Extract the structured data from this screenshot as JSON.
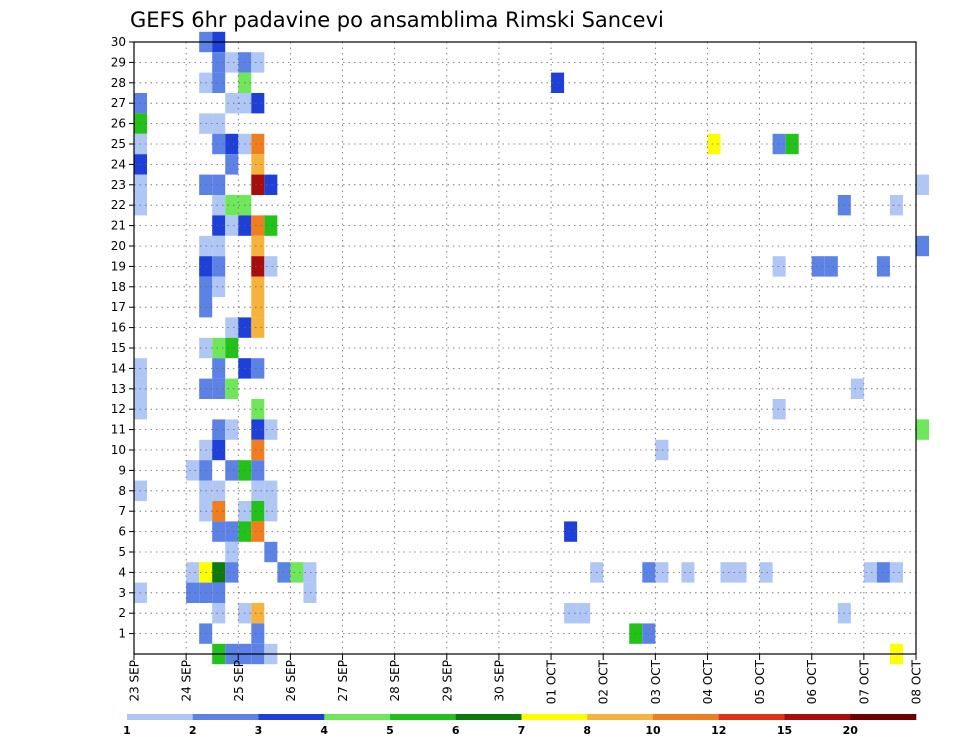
{
  "chart_data": {
    "type": "heatmap",
    "title": "GEFS 6hr padavine po ansamblima Rimski Sancevi",
    "x_tick_labels": [
      "23 SEP",
      "24 SEP",
      "25 SEP",
      "26 SEP",
      "27 SEP",
      "28 SEP",
      "29 SEP",
      "30 SEP",
      "01 OCT",
      "02 OCT",
      "03 OCT",
      "04 OCT",
      "05 OCT",
      "06 OCT",
      "07 OCT",
      "08 OCT"
    ],
    "y_tick_labels": [
      "1",
      "2",
      "3",
      "4",
      "5",
      "6",
      "7",
      "8",
      "9",
      "10",
      "11",
      "12",
      "13",
      "14",
      "15",
      "16",
      "17",
      "18",
      "19",
      "20",
      "21",
      "22",
      "23",
      "24",
      "25",
      "26",
      "27",
      "28",
      "29",
      "30"
    ],
    "y_range": [
      0,
      30
    ],
    "x_range_days": [
      0,
      15
    ],
    "step_hours": 6,
    "grid": true,
    "colorbar": {
      "labels": [
        "1",
        "2",
        "3",
        "4",
        "5",
        "6",
        "7",
        "8",
        "10",
        "12",
        "15",
        "20"
      ],
      "colors": [
        "#b0c6f5",
        "#5c82e6",
        "#1e3fd8",
        "#6ee85a",
        "#22c21a",
        "#0d7a0d",
        "#ffff00",
        "#f5b23c",
        "#f07d1e",
        "#e03214",
        "#a80c0c",
        "#6e0000"
      ]
    },
    "cells": [
      [
        "2023-09-24T06",
        "30",
        "#5c82e6"
      ],
      [
        "2023-09-24T12",
        "30",
        "#1e3fd8"
      ],
      [
        "2023-09-24T12",
        "29",
        "#5c82e6"
      ],
      [
        "2023-09-24T18",
        "29",
        "#b0c6f5"
      ],
      [
        "2023-09-25T00",
        "29",
        "#5c82e6"
      ],
      [
        "2023-09-25T06",
        "29",
        "#b0c6f5"
      ],
      [
        "2023-09-24T06",
        "28",
        "#b0c6f5"
      ],
      [
        "2023-09-24T12",
        "28",
        "#5c82e6"
      ],
      [
        "2023-09-25T00",
        "28",
        "#6ee85a"
      ],
      [
        "2023-10-01T00",
        "28",
        "#1e3fd8"
      ],
      [
        "2023-09-23T00",
        "27",
        "#5c82e6"
      ],
      [
        "2023-09-24T18",
        "27",
        "#b0c6f5"
      ],
      [
        "2023-09-25T00",
        "27",
        "#b0c6f5"
      ],
      [
        "2023-09-25T06",
        "27",
        "#1e3fd8"
      ],
      [
        "2023-09-23T00",
        "26",
        "#22c21a"
      ],
      [
        "2023-09-24T06",
        "26",
        "#b0c6f5"
      ],
      [
        "2023-09-24T12",
        "26",
        "#b0c6f5"
      ],
      [
        "2023-09-23T00",
        "25",
        "#b0c6f5"
      ],
      [
        "2023-09-24T12",
        "25",
        "#5c82e6"
      ],
      [
        "2023-09-24T18",
        "25",
        "#1e3fd8"
      ],
      [
        "2023-09-25T00",
        "25",
        "#b0c6f5"
      ],
      [
        "2023-09-25T06",
        "25",
        "#f07d1e"
      ],
      [
        "2023-10-04T00",
        "25",
        "#ffff00"
      ],
      [
        "2023-10-05T06",
        "25",
        "#5c82e6"
      ],
      [
        "2023-10-05T12",
        "25",
        "#22c21a"
      ],
      [
        "2023-09-23T00",
        "24",
        "#1e3fd8"
      ],
      [
        "2023-09-24T18",
        "24",
        "#5c82e6"
      ],
      [
        "2023-09-25T06",
        "24",
        "#f5b23c"
      ],
      [
        "2023-09-23T00",
        "23",
        "#b0c6f5"
      ],
      [
        "2023-09-24T06",
        "23",
        "#5c82e6"
      ],
      [
        "2023-09-24T12",
        "23",
        "#5c82e6"
      ],
      [
        "2023-09-25T06",
        "23",
        "#a80c0c"
      ],
      [
        "2023-09-25T12",
        "23",
        "#1e3fd8"
      ],
      [
        "2023-10-08T00",
        "23",
        "#b0c6f5"
      ],
      [
        "2023-09-23T00",
        "22",
        "#b0c6f5"
      ],
      [
        "2023-09-24T12",
        "22",
        "#b0c6f5"
      ],
      [
        "2023-09-24T18",
        "22",
        "#6ee85a"
      ],
      [
        "2023-09-25T00",
        "22",
        "#6ee85a"
      ],
      [
        "2023-10-06T12",
        "22",
        "#5c82e6"
      ],
      [
        "2023-10-07T12",
        "22",
        "#b0c6f5"
      ],
      [
        "2023-09-24T12",
        "21",
        "#1e3fd8"
      ],
      [
        "2023-09-24T18",
        "21",
        "#b0c6f5"
      ],
      [
        "2023-09-25T00",
        "21",
        "#1e3fd8"
      ],
      [
        "2023-09-25T06",
        "21",
        "#f07d1e"
      ],
      [
        "2023-09-25T12",
        "21",
        "#22c21a"
      ],
      [
        "2023-09-24T06",
        "20",
        "#b0c6f5"
      ],
      [
        "2023-09-24T12",
        "20",
        "#b0c6f5"
      ],
      [
        "2023-09-25T06",
        "20",
        "#f5b23c"
      ],
      [
        "2023-10-08T00",
        "20",
        "#5c82e6"
      ],
      [
        "2023-09-24T06",
        "19",
        "#1e3fd8"
      ],
      [
        "2023-09-24T12",
        "19",
        "#5c82e6"
      ],
      [
        "2023-09-25T06",
        "19",
        "#a80c0c"
      ],
      [
        "2023-09-25T12",
        "19",
        "#b0c6f5"
      ],
      [
        "2023-10-05T06",
        "19",
        "#b0c6f5"
      ],
      [
        "2023-10-06T00",
        "19",
        "#5c82e6"
      ],
      [
        "2023-10-06T06",
        "19",
        "#5c82e6"
      ],
      [
        "2023-10-07T06",
        "19",
        "#5c82e6"
      ],
      [
        "2023-09-24T06",
        "18",
        "#5c82e6"
      ],
      [
        "2023-09-24T12",
        "18",
        "#b0c6f5"
      ],
      [
        "2023-09-25T06",
        "18",
        "#f5b23c"
      ],
      [
        "2023-09-24T06",
        "17",
        "#5c82e6"
      ],
      [
        "2023-09-25T06",
        "17",
        "#f5b23c"
      ],
      [
        "2023-09-24T18",
        "16",
        "#b0c6f5"
      ],
      [
        "2023-09-25T00",
        "16",
        "#1e3fd8"
      ],
      [
        "2023-09-25T06",
        "16",
        "#f5b23c"
      ],
      [
        "2023-09-24T06",
        "15",
        "#b0c6f5"
      ],
      [
        "2023-09-24T12",
        "15",
        "#6ee85a"
      ],
      [
        "2023-09-24T18",
        "15",
        "#22c21a"
      ],
      [
        "2023-09-23T00",
        "14",
        "#b0c6f5"
      ],
      [
        "2023-09-24T12",
        "14",
        "#5c82e6"
      ],
      [
        "2023-09-25T00",
        "14",
        "#1e3fd8"
      ],
      [
        "2023-09-25T06",
        "14",
        "#5c82e6"
      ],
      [
        "2023-09-23T00",
        "13",
        "#b0c6f5"
      ],
      [
        "2023-09-24T06",
        "13",
        "#5c82e6"
      ],
      [
        "2023-09-24T12",
        "13",
        "#5c82e6"
      ],
      [
        "2023-09-24T18",
        "13",
        "#6ee85a"
      ],
      [
        "2023-10-06T18",
        "13",
        "#b0c6f5"
      ],
      [
        "2023-09-23T00",
        "12",
        "#b0c6f5"
      ],
      [
        "2023-09-25T06",
        "12",
        "#6ee85a"
      ],
      [
        "2023-10-05T06",
        "12",
        "#b0c6f5"
      ],
      [
        "2023-09-24T12",
        "11",
        "#5c82e6"
      ],
      [
        "2023-09-24T18",
        "11",
        "#b0c6f5"
      ],
      [
        "2023-09-25T06",
        "11",
        "#1e3fd8"
      ],
      [
        "2023-09-25T12",
        "11",
        "#b0c6f5"
      ],
      [
        "2023-10-08T00",
        "11",
        "#6ee85a"
      ],
      [
        "2023-09-24T06",
        "10",
        "#b0c6f5"
      ],
      [
        "2023-09-24T12",
        "10",
        "#1e3fd8"
      ],
      [
        "2023-09-25T06",
        "10",
        "#f07d1e"
      ],
      [
        "2023-10-03T00",
        "10",
        "#b0c6f5"
      ],
      [
        "2023-09-24T00",
        "9",
        "#b0c6f5"
      ],
      [
        "2023-09-24T06",
        "9",
        "#5c82e6"
      ],
      [
        "2023-09-24T18",
        "9",
        "#5c82e6"
      ],
      [
        "2023-09-25T00",
        "9",
        "#22c21a"
      ],
      [
        "2023-09-25T06",
        "9",
        "#5c82e6"
      ],
      [
        "2023-09-23T00",
        "8",
        "#b0c6f5"
      ],
      [
        "2023-09-24T06",
        "8",
        "#b0c6f5"
      ],
      [
        "2023-09-24T12",
        "8",
        "#b0c6f5"
      ],
      [
        "2023-09-25T06",
        "8",
        "#b0c6f5"
      ],
      [
        "2023-09-25T12",
        "8",
        "#b0c6f5"
      ],
      [
        "2023-09-24T06",
        "7",
        "#b0c6f5"
      ],
      [
        "2023-09-24T12",
        "7",
        "#f07d1e"
      ],
      [
        "2023-09-25T00",
        "7",
        "#b0c6f5"
      ],
      [
        "2023-09-25T06",
        "7",
        "#22c21a"
      ],
      [
        "2023-09-25T12",
        "7",
        "#b0c6f5"
      ],
      [
        "2023-09-24T12",
        "6",
        "#5c82e6"
      ],
      [
        "2023-09-24T18",
        "6",
        "#5c82e6"
      ],
      [
        "2023-09-25T00",
        "6",
        "#22c21a"
      ],
      [
        "2023-09-25T06",
        "6",
        "#f07d1e"
      ],
      [
        "2023-10-01T06",
        "6",
        "#1e3fd8"
      ],
      [
        "2023-09-24T18",
        "5",
        "#b0c6f5"
      ],
      [
        "2023-09-25T12",
        "5",
        "#5c82e6"
      ],
      [
        "2023-09-24T00",
        "4",
        "#b0c6f5"
      ],
      [
        "2023-09-24T06",
        "4",
        "#ffff00"
      ],
      [
        "2023-09-24T12",
        "4",
        "#0d7a0d"
      ],
      [
        "2023-09-24T18",
        "4",
        "#5c82e6"
      ],
      [
        "2023-09-25T18",
        "4",
        "#5c82e6"
      ],
      [
        "2023-09-26T00",
        "4",
        "#6ee85a"
      ],
      [
        "2023-09-26T06",
        "4",
        "#b0c6f5"
      ],
      [
        "2023-10-01T18",
        "4",
        "#b0c6f5"
      ],
      [
        "2023-10-02T18",
        "4",
        "#5c82e6"
      ],
      [
        "2023-10-03T00",
        "4",
        "#b0c6f5"
      ],
      [
        "2023-10-03T12",
        "4",
        "#b0c6f5"
      ],
      [
        "2023-10-04T06",
        "4",
        "#b0c6f5"
      ],
      [
        "2023-10-04T12",
        "4",
        "#b0c6f5"
      ],
      [
        "2023-10-05T00",
        "4",
        "#b0c6f5"
      ],
      [
        "2023-10-07T00",
        "4",
        "#b0c6f5"
      ],
      [
        "2023-10-07T06",
        "4",
        "#5c82e6"
      ],
      [
        "2023-10-07T12",
        "4",
        "#b0c6f5"
      ],
      [
        "2023-09-23T00",
        "3",
        "#b0c6f5"
      ],
      [
        "2023-09-24T00",
        "3",
        "#5c82e6"
      ],
      [
        "2023-09-24T06",
        "3",
        "#5c82e6"
      ],
      [
        "2023-09-24T12",
        "3",
        "#5c82e6"
      ],
      [
        "2023-09-26T06",
        "3",
        "#b0c6f5"
      ],
      [
        "2023-09-24T12",
        "2",
        "#b0c6f5"
      ],
      [
        "2023-09-25T00",
        "2",
        "#b0c6f5"
      ],
      [
        "2023-09-25T06",
        "2",
        "#f5b23c"
      ],
      [
        "2023-10-01T06",
        "2",
        "#b0c6f5"
      ],
      [
        "2023-10-01T12",
        "2",
        "#b0c6f5"
      ],
      [
        "2023-10-06T12",
        "2",
        "#b0c6f5"
      ],
      [
        "2023-09-24T06",
        "1",
        "#5c82e6"
      ],
      [
        "2023-09-25T06",
        "1",
        "#5c82e6"
      ],
      [
        "2023-10-02T12",
        "1",
        "#22c21a"
      ],
      [
        "2023-10-02T18",
        "1",
        "#5c82e6"
      ],
      [
        "2023-09-24T12",
        "0",
        "#22c21a"
      ],
      [
        "2023-09-24T18",
        "0",
        "#5c82e6"
      ],
      [
        "2023-09-25T00",
        "0",
        "#5c82e6"
      ],
      [
        "2023-09-25T06",
        "0",
        "#5c82e6"
      ],
      [
        "2023-09-25T12",
        "0",
        "#b0c6f5"
      ],
      [
        "2023-10-07T12",
        "0",
        "#ffff00"
      ]
    ]
  }
}
